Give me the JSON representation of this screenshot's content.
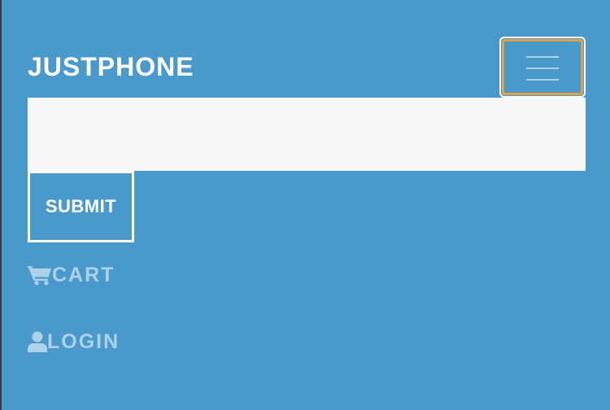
{
  "navbar": {
    "brand": "JUSTPHONE",
    "toggler_icon": "hamburger-icon"
  },
  "search": {
    "value": "",
    "placeholder": "",
    "submit_label": "SUBMIT"
  },
  "nav_links": [
    {
      "label": "CART",
      "icon": "cart-icon"
    },
    {
      "label": "LOGIN",
      "icon": "user-icon"
    }
  ],
  "colors": {
    "background": "#4a99cc",
    "toggler_focus": "#e8a03e",
    "input_bg": "#f8f8fa",
    "text": "#ffffff"
  }
}
